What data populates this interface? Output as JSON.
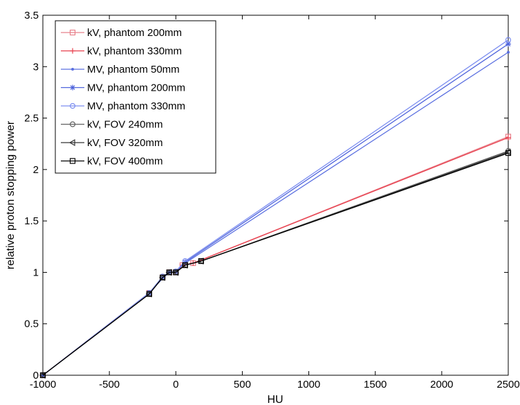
{
  "chart_data": {
    "type": "line",
    "xlabel": "HU",
    "ylabel": "relative proton stopping power",
    "xlim": [
      -1000,
      2500
    ],
    "ylim": [
      0,
      3.5
    ],
    "xticks": [
      -1000,
      -500,
      0,
      500,
      1000,
      1500,
      2000,
      2500
    ],
    "xtick_labels": [
      "-1000",
      "-500",
      "0",
      "500",
      "1000",
      "1500",
      "2000",
      "2500"
    ],
    "yticks": [
      0,
      0.5,
      1,
      1.5,
      2,
      2.5,
      3,
      3.5
    ],
    "ytick_labels": [
      "0",
      "0.5",
      "1",
      "1.5",
      "2",
      "2.5",
      "3",
      "3.5"
    ],
    "grid": false,
    "legend_position": "top-left",
    "series": [
      {
        "name": "kV, phantom 200mm",
        "color": "#e8808a",
        "marker": "square",
        "x": [
          -1000,
          -200,
          -100,
          -50,
          0,
          50,
          130,
          2500
        ],
        "y": [
          0,
          0.8,
          0.95,
          1.0,
          1.0,
          1.07,
          1.09,
          2.32
        ]
      },
      {
        "name": "kV, phantom 330mm",
        "color": "#e8404e",
        "marker": "plus",
        "x": [
          -1000,
          -200,
          -100,
          -50,
          0,
          50,
          130,
          2500
        ],
        "y": [
          0,
          0.8,
          0.95,
          1.0,
          1.0,
          1.07,
          1.09,
          2.31
        ]
      },
      {
        "name": "MV, phantom 50mm",
        "color": "#5a6fe0",
        "marker": "dot",
        "x": [
          -1000,
          -200,
          -100,
          -50,
          0,
          70,
          2500
        ],
        "y": [
          0,
          0.8,
          0.94,
          1.0,
          1.01,
          1.09,
          3.14
        ]
      },
      {
        "name": "MV, phantom 200mm",
        "color": "#4f64dc",
        "marker": "star",
        "x": [
          -1000,
          -200,
          -100,
          -50,
          0,
          70,
          2500
        ],
        "y": [
          0,
          0.8,
          0.95,
          1.0,
          1.01,
          1.1,
          3.22
        ]
      },
      {
        "name": "MV, phantom 330mm",
        "color": "#7c8ef0",
        "marker": "circle",
        "x": [
          -1000,
          -200,
          -100,
          -50,
          0,
          70,
          2500
        ],
        "y": [
          0,
          0.8,
          0.96,
          1.0,
          1.01,
          1.11,
          3.26
        ]
      },
      {
        "name": "kV, FOV 240mm",
        "color": "#606060",
        "marker": "circle",
        "x": [
          -1000,
          -200,
          -100,
          -50,
          0,
          70,
          190,
          2500
        ],
        "y": [
          0,
          0.79,
          0.95,
          1.0,
          1.0,
          1.07,
          1.11,
          2.18
        ]
      },
      {
        "name": "kV, FOV 320mm",
        "color": "#333333",
        "marker": "triangle-left",
        "x": [
          -1000,
          -200,
          -100,
          -50,
          0,
          70,
          190,
          2500
        ],
        "y": [
          0,
          0.79,
          0.95,
          1.0,
          1.0,
          1.07,
          1.11,
          2.17
        ]
      },
      {
        "name": "kV, FOV 400mm",
        "color": "#000000",
        "marker": "square",
        "x": [
          -1000,
          -200,
          -100,
          -50,
          0,
          70,
          190,
          2500
        ],
        "y": [
          0,
          0.79,
          0.95,
          1.0,
          1.0,
          1.07,
          1.11,
          2.16
        ]
      }
    ]
  }
}
